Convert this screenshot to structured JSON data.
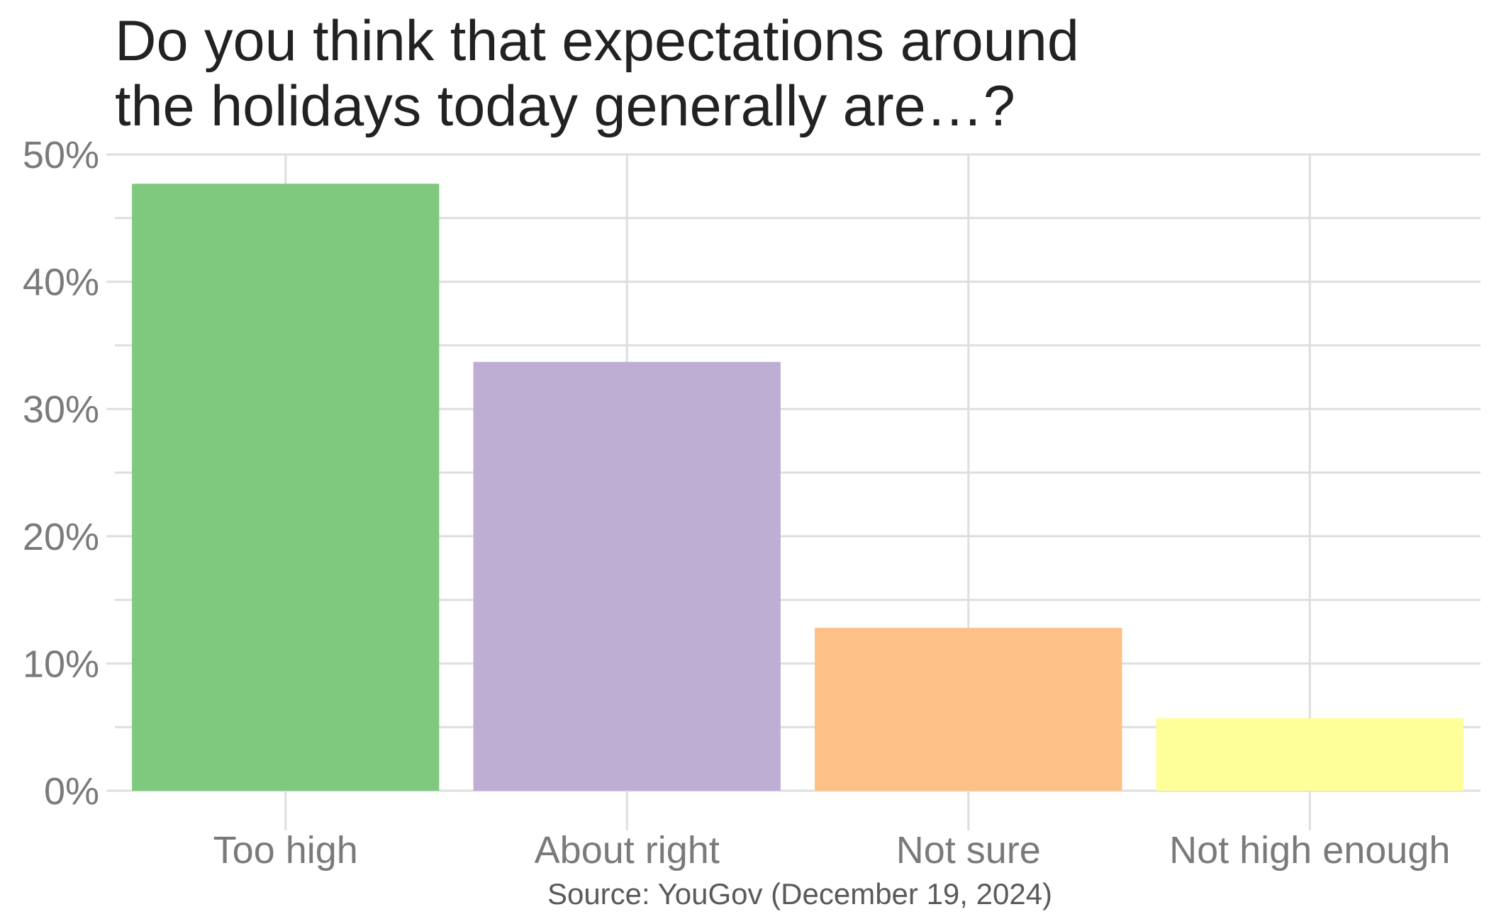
{
  "chart_data": {
    "type": "bar",
    "title_lines": [
      "Do you think that expectations around",
      "the holidays today generally are…?"
    ],
    "categories": [
      "Too high",
      "About right",
      "Not sure",
      "Not high enough"
    ],
    "values": [
      47.7,
      33.7,
      12.8,
      5.7
    ],
    "colors": [
      "#7fc97f",
      "#beaed4",
      "#fdc086",
      "#ffff99"
    ],
    "ylim": [
      0,
      50
    ],
    "y_ticks": [
      0,
      10,
      20,
      30,
      40,
      50
    ],
    "y_tick_labels": [
      "0%",
      "10%",
      "20%",
      "30%",
      "40%",
      "50%"
    ],
    "grid": true,
    "legend": false,
    "caption": "Source: YouGov (December 19, 2024)"
  }
}
